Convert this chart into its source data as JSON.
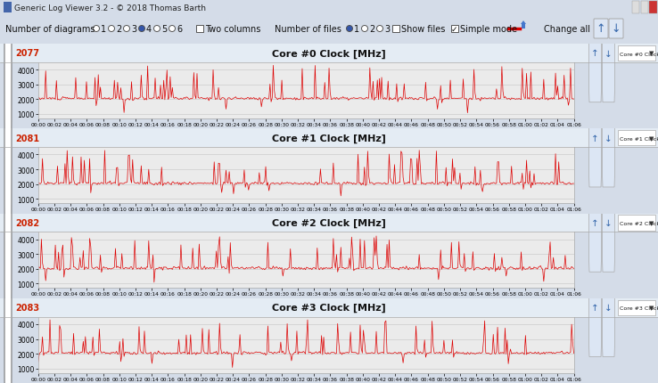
{
  "title_bar": "Generic Log Viewer 3.2 - © 2018 Thomas Barth",
  "line_color": "#dd0000",
  "grid_color": "#cccccc",
  "plot_bg": "#ebebeb",
  "outer_bg": "#d4dce8",
  "panel_bg": "#dce6f0",
  "cores": [
    {
      "label": "Core #0 Clock [MHz]",
      "min_val": "2077"
    },
    {
      "label": "Core #1 Clock [MHz]",
      "min_val": "2081"
    },
    {
      "label": "Core #2 Clock [MHz]",
      "min_val": "2082"
    },
    {
      "label": "Core #3 Clock [MHz]",
      "min_val": "2083"
    }
  ],
  "yticks": [
    1000,
    2000,
    3000,
    4000
  ],
  "ylim": [
    700,
    4500
  ],
  "n_points": 500,
  "x_labels": [
    "00:00",
    "00:02",
    "00:04",
    "00:06",
    "00:08",
    "00:10",
    "00:12",
    "00:14",
    "00:16",
    "00:18",
    "00:20",
    "00:22",
    "00:24",
    "00:26",
    "00:28",
    "00:30",
    "00:32",
    "00:34",
    "00:36",
    "00:38",
    "00:40",
    "00:42",
    "00:44",
    "00:46",
    "00:48",
    "00:50",
    "00:52",
    "00:54",
    "00:56",
    "00:58",
    "01:00",
    "01:02",
    "01:04",
    "01:06"
  ]
}
